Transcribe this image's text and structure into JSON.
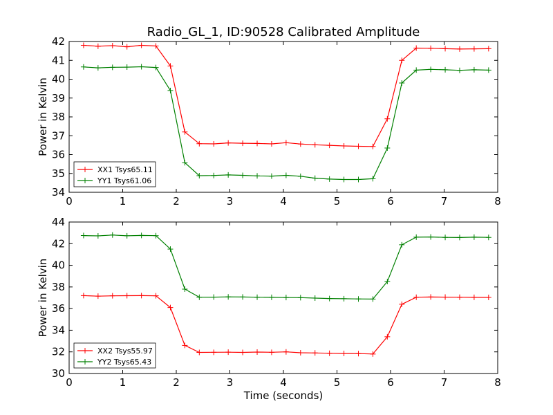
{
  "figure_title": "Radio_GL_1, ID:90528 Calibrated Amplitude",
  "chart_data": [
    {
      "type": "line",
      "title": "Radio_GL_1, ID:90528 Calibrated Amplitude",
      "xlabel": "",
      "ylabel": "Power in Kelvin",
      "xlim": [
        0,
        8
      ],
      "ylim": [
        34,
        42
      ],
      "xticks": [
        "0",
        "1",
        "2",
        "3",
        "4",
        "5",
        "6",
        "7",
        "8"
      ],
      "yticks": [
        "34",
        "35",
        "36",
        "37",
        "38",
        "39",
        "40",
        "41",
        "42"
      ],
      "grid": false,
      "legend_position": "lower-left",
      "x": [
        0.27,
        0.54,
        0.81,
        1.08,
        1.35,
        1.62,
        1.89,
        2.16,
        2.43,
        2.7,
        2.97,
        3.24,
        3.51,
        3.78,
        4.05,
        4.32,
        4.59,
        4.86,
        5.13,
        5.4,
        5.67,
        5.94,
        6.21,
        6.48,
        6.75,
        7.02,
        7.29,
        7.56,
        7.83
      ],
      "series": [
        {
          "name": "XX1 Tsys65.11",
          "color": "#ff0000",
          "values": [
            41.8,
            41.75,
            41.78,
            41.72,
            41.8,
            41.76,
            40.7,
            37.2,
            36.58,
            36.57,
            36.62,
            36.6,
            36.59,
            36.57,
            36.63,
            36.56,
            36.52,
            36.49,
            36.46,
            36.44,
            36.43,
            37.9,
            41.0,
            41.65,
            41.64,
            41.62,
            41.6,
            41.61,
            41.62
          ]
        },
        {
          "name": "YY1 Tsys61.06",
          "color": "#008000",
          "values": [
            40.65,
            40.6,
            40.63,
            40.64,
            40.66,
            40.62,
            39.4,
            35.57,
            34.88,
            34.89,
            34.92,
            34.9,
            34.87,
            34.86,
            34.9,
            34.85,
            34.75,
            34.7,
            34.68,
            34.68,
            34.72,
            36.35,
            39.8,
            40.48,
            40.52,
            40.5,
            40.47,
            40.5,
            40.48
          ]
        }
      ]
    },
    {
      "type": "line",
      "title": "",
      "xlabel": "Time (seconds)",
      "ylabel": "Power in Kelvin",
      "xlim": [
        0,
        8
      ],
      "ylim": [
        30,
        44
      ],
      "xticks": [
        "0",
        "1",
        "2",
        "3",
        "4",
        "5",
        "6",
        "7",
        "8"
      ],
      "yticks": [
        "30",
        "32",
        "34",
        "36",
        "38",
        "40",
        "42",
        "44"
      ],
      "grid": false,
      "legend_position": "lower-left",
      "x": [
        0.27,
        0.54,
        0.81,
        1.08,
        1.35,
        1.62,
        1.89,
        2.16,
        2.43,
        2.7,
        2.97,
        3.24,
        3.51,
        3.78,
        4.05,
        4.32,
        4.59,
        4.86,
        5.13,
        5.4,
        5.67,
        5.94,
        6.21,
        6.48,
        6.75,
        7.02,
        7.29,
        7.56,
        7.83
      ],
      "series": [
        {
          "name": "XX2 Tsys55.97",
          "color": "#ff0000",
          "values": [
            37.2,
            37.15,
            37.18,
            37.19,
            37.2,
            37.18,
            36.1,
            32.6,
            31.95,
            31.96,
            31.97,
            31.95,
            31.98,
            31.96,
            32.0,
            31.92,
            31.9,
            31.87,
            31.85,
            31.84,
            31.8,
            33.4,
            36.4,
            37.05,
            37.07,
            37.06,
            37.05,
            37.04,
            37.03
          ]
        },
        {
          "name": "YY2 Tsys65.43",
          "color": "#008000",
          "values": [
            42.75,
            42.72,
            42.8,
            42.73,
            42.76,
            42.74,
            41.5,
            37.8,
            37.05,
            37.06,
            37.08,
            37.07,
            37.05,
            37.04,
            37.02,
            37.01,
            36.97,
            36.93,
            36.91,
            36.89,
            36.88,
            38.5,
            41.9,
            42.6,
            42.62,
            42.58,
            42.57,
            42.6,
            42.58
          ]
        }
      ]
    }
  ]
}
